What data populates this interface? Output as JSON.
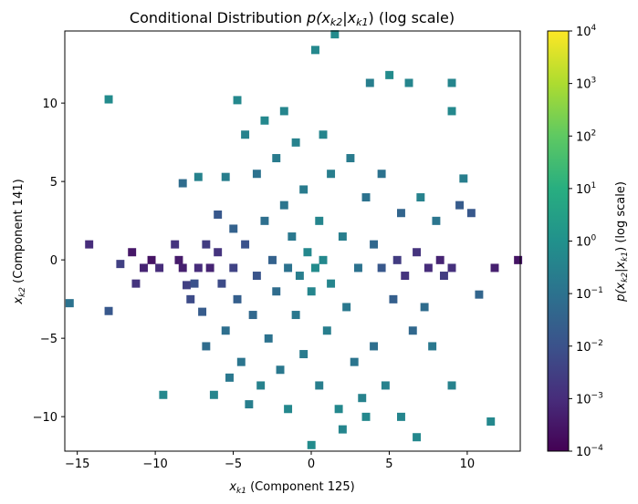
{
  "chart_data": {
    "type": "heatmap",
    "title_prefix": "Conditional Distribution ",
    "title_math": "p(x",
    "title_sub1": "k2",
    "title_mid": "|x",
    "title_sub2": "k1",
    "title_end": ")",
    "title_suffix": " (log scale)",
    "xlabel_var": "x",
    "xlabel_sub": "k1",
    "xlabel_rest": " (Component 125)",
    "ylabel_var": "x",
    "ylabel_sub": "k2",
    "ylabel_rest": " (Component 141)",
    "xlim": [
      -15.8,
      13.4
    ],
    "ylim": [
      -12.2,
      14.6
    ],
    "xticks": [
      -15,
      -10,
      -5,
      0,
      5,
      10
    ],
    "xtick_labels": [
      "−15",
      "−10",
      "−5",
      "0",
      "5",
      "10"
    ],
    "yticks": [
      -10,
      -5,
      0,
      5,
      10
    ],
    "ytick_labels": [
      "−10",
      "−5",
      "0",
      "5",
      "10"
    ],
    "colormap": "viridis",
    "colorbar": {
      "scale": "log",
      "range": [
        0.0001,
        10000
      ],
      "ticks": [
        -4,
        -3,
        -2,
        -1,
        0,
        1,
        2,
        3,
        4
      ],
      "tick_labels": [
        "10",
        "10",
        "10",
        "10",
        "10",
        "10",
        "10",
        "10",
        "10"
      ],
      "tick_exponents": [
        "−4",
        "−3",
        "−2",
        "−1",
        "0",
        "1",
        "2",
        "3",
        "4"
      ],
      "label_prefix": "p(x",
      "label_sub1": "k2",
      "label_mid": "|x",
      "label_sub2": "k1",
      "label_end": ")",
      "label_suffix": " (log scale)"
    },
    "bin_size": 0.5,
    "cells_note_units": "cells given as [x_center, y_center, log10 density]",
    "cells": [
      [
        -15.5,
        -2.75,
        -1.0
      ],
      [
        -14.25,
        1.0,
        -3.0
      ],
      [
        -13.0,
        10.25,
        -0.2
      ],
      [
        -13.0,
        -3.25,
        -1.8
      ],
      [
        -12.25,
        -0.25,
        -2.5
      ],
      [
        -11.5,
        0.5,
        -3.5
      ],
      [
        -11.25,
        -1.5,
        -2.8
      ],
      [
        -10.75,
        -0.5,
        -3.2
      ],
      [
        -10.25,
        0.0,
        -3.6
      ],
      [
        -9.75,
        -0.5,
        -3.0
      ],
      [
        -9.5,
        -8.6,
        -0.3
      ],
      [
        -8.75,
        1.0,
        -2.8
      ],
      [
        -8.5,
        0.0,
        -3.4
      ],
      [
        -8.25,
        4.9,
        -1.2
      ],
      [
        -8.25,
        -0.5,
        -3.3
      ],
      [
        -8.0,
        -1.6,
        -2.5
      ],
      [
        -7.75,
        -2.5,
        -2.2
      ],
      [
        -7.5,
        -1.5,
        -2.0
      ],
      [
        -7.25,
        5.3,
        -0.5
      ],
      [
        -7.25,
        -0.5,
        -3.0
      ],
      [
        -7.0,
        -3.3,
        -1.7
      ],
      [
        -6.75,
        1.0,
        -2.6
      ],
      [
        -6.75,
        -5.5,
        -1.2
      ],
      [
        -6.5,
        -0.5,
        -3.2
      ],
      [
        -6.25,
        -8.6,
        -0.4
      ],
      [
        -6.0,
        2.9,
        -1.8
      ],
      [
        -6.0,
        0.5,
        -2.8
      ],
      [
        -5.75,
        -1.5,
        -2.2
      ],
      [
        -5.5,
        5.3,
        -0.6
      ],
      [
        -5.5,
        -4.5,
        -1.1
      ],
      [
        -5.25,
        -7.5,
        -0.8
      ],
      [
        -5.0,
        2.0,
        -1.5
      ],
      [
        -5.0,
        -0.5,
        -2.4
      ],
      [
        -4.75,
        10.2,
        -0.3
      ],
      [
        -4.75,
        -2.5,
        -1.6
      ],
      [
        -4.5,
        -6.5,
        -0.9
      ],
      [
        -4.25,
        8.0,
        -0.5
      ],
      [
        -4.25,
        1.0,
        -2.0
      ],
      [
        -4.0,
        -9.2,
        -0.6
      ],
      [
        -3.75,
        -3.5,
        -1.3
      ],
      [
        -3.5,
        5.5,
        -1.0
      ],
      [
        -3.5,
        -1.0,
        -1.9
      ],
      [
        -3.25,
        -8.0,
        -0.5
      ],
      [
        -3.0,
        8.9,
        -0.3
      ],
      [
        -3.0,
        2.5,
        -1.1
      ],
      [
        -2.75,
        -5.0,
        -1.0
      ],
      [
        -2.5,
        0.0,
        -1.5
      ],
      [
        -2.25,
        6.5,
        -0.7
      ],
      [
        -2.25,
        -2.0,
        -1.2
      ],
      [
        -2.0,
        -7.0,
        -0.8
      ],
      [
        -1.75,
        9.5,
        -0.4
      ],
      [
        -1.75,
        3.5,
        -0.9
      ],
      [
        -1.5,
        -0.5,
        -1.0
      ],
      [
        -1.5,
        -9.5,
        -0.3
      ],
      [
        -1.25,
        1.5,
        -0.8
      ],
      [
        -1.0,
        -3.5,
        -0.8
      ],
      [
        -1.0,
        7.5,
        -0.5
      ],
      [
        -0.75,
        -1.0,
        -0.6
      ],
      [
        -0.5,
        4.5,
        -0.7
      ],
      [
        -0.5,
        -6.0,
        -0.7
      ],
      [
        -0.25,
        0.5,
        -0.3
      ],
      [
        0.0,
        -2.0,
        -0.4
      ],
      [
        0.0,
        -11.8,
        -0.2
      ],
      [
        0.25,
        13.4,
        -0.3
      ],
      [
        0.25,
        -0.5,
        -0.2
      ],
      [
        0.5,
        2.5,
        -0.4
      ],
      [
        0.5,
        -8.0,
        -0.6
      ],
      [
        0.75,
        8.0,
        -0.4
      ],
      [
        0.75,
        0.0,
        -0.3
      ],
      [
        1.0,
        -4.5,
        -0.6
      ],
      [
        1.25,
        5.5,
        -0.6
      ],
      [
        1.25,
        -1.5,
        -0.4
      ],
      [
        1.5,
        14.4,
        -0.2
      ],
      [
        1.75,
        -9.5,
        -0.3
      ],
      [
        2.0,
        -10.8,
        -0.4
      ],
      [
        2.0,
        1.5,
        -0.6
      ],
      [
        2.25,
        -3.0,
        -0.8
      ],
      [
        2.5,
        6.5,
        -0.7
      ],
      [
        2.75,
        -6.5,
        -0.9
      ],
      [
        3.0,
        -0.5,
        -1.0
      ],
      [
        3.25,
        -8.8,
        -0.5
      ],
      [
        3.5,
        4.0,
        -1.0
      ],
      [
        3.5,
        -10.0,
        -0.3
      ],
      [
        3.75,
        11.3,
        -0.6
      ],
      [
        4.0,
        1.0,
        -1.3
      ],
      [
        4.0,
        -5.5,
        -1.1
      ],
      [
        4.5,
        5.5,
        -1.0
      ],
      [
        4.5,
        -0.5,
        -1.8
      ],
      [
        4.75,
        -8.0,
        -0.5
      ],
      [
        5.0,
        11.8,
        -0.2
      ],
      [
        5.25,
        -2.5,
        -1.6
      ],
      [
        5.5,
        0.0,
        -2.6
      ],
      [
        5.75,
        3.0,
        -1.4
      ],
      [
        5.75,
        -10.0,
        -0.4
      ],
      [
        6.0,
        -1.0,
        -2.8
      ],
      [
        6.25,
        11.3,
        -0.4
      ],
      [
        6.5,
        -4.5,
        -1.3
      ],
      [
        6.75,
        0.5,
        -2.8
      ],
      [
        6.75,
        -11.3,
        -0.3
      ],
      [
        7.0,
        4.0,
        -0.5
      ],
      [
        7.25,
        -3.0,
        -1.2
      ],
      [
        7.5,
        -0.5,
        -3.0
      ],
      [
        7.75,
        -5.5,
        -0.8
      ],
      [
        8.0,
        2.5,
        -0.9
      ],
      [
        8.25,
        0.0,
        -3.2
      ],
      [
        8.5,
        -1.0,
        -2.6
      ],
      [
        9.0,
        11.3,
        -0.4
      ],
      [
        9.0,
        9.5,
        -0.3
      ],
      [
        9.0,
        -8.0,
        -0.5
      ],
      [
        9.0,
        -0.5,
        -2.9
      ],
      [
        9.5,
        3.5,
        -1.7
      ],
      [
        9.75,
        5.2,
        -0.6
      ],
      [
        10.25,
        3.0,
        -1.8
      ],
      [
        10.75,
        -2.2,
        -1.4
      ],
      [
        11.5,
        -10.3,
        -0.3
      ],
      [
        11.75,
        -0.5,
        -3.3
      ],
      [
        13.25,
        0.0,
        -3.6
      ]
    ]
  }
}
